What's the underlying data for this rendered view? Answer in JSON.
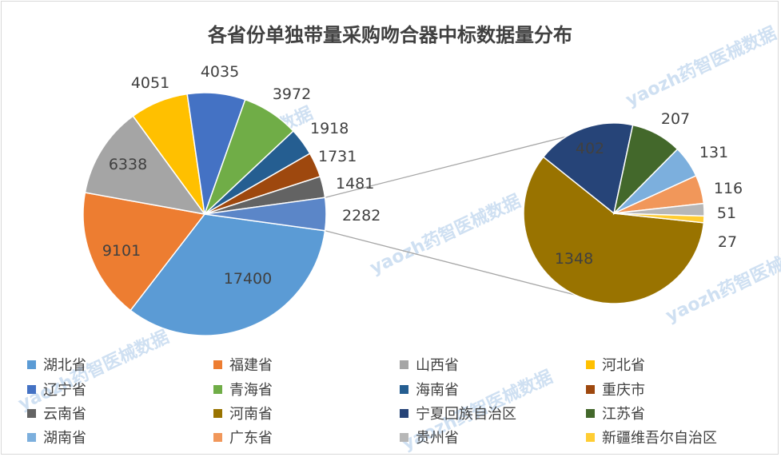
{
  "chart_data": {
    "type": "pie",
    "subtype": "pie-of-pie",
    "title": "各省份单独带量采购吻合器中标数据量分布",
    "categories": [
      "湖北省",
      "福建省",
      "山西省",
      "河北省",
      "辽宁省",
      "青海省",
      "海南省",
      "重庆市",
      "云南省",
      "河南省",
      "宁夏回族自治区",
      "江苏省",
      "湖南省",
      "广东省",
      "贵州省",
      "新疆维吾尔自治区"
    ],
    "values": [
      17400,
      9101,
      6338,
      4051,
      4035,
      3972,
      1918,
      1731,
      1481,
      1348,
      402,
      207,
      131,
      116,
      51,
      27
    ],
    "main_pie": {
      "categories": [
        "湖北省",
        "福建省",
        "山西省",
        "河北省",
        "辽宁省",
        "青海省",
        "海南省",
        "重庆市",
        "云南省"
      ],
      "values": [
        17400,
        9101,
        6338,
        4051,
        4035,
        3972,
        1918,
        1731,
        1481
      ],
      "other_value": 2282
    },
    "secondary_pie": {
      "categories": [
        "河南省",
        "宁夏回族自治区",
        "江苏省",
        "湖南省",
        "广东省",
        "贵州省",
        "新疆维吾尔自治区"
      ],
      "values": [
        1348,
        402,
        207,
        131,
        116,
        51,
        27
      ]
    },
    "colors": [
      "#5b9bd5",
      "#ed7d31",
      "#a5a5a5",
      "#ffc000",
      "#4472c4",
      "#70ad47",
      "#255e91",
      "#9e480e",
      "#636363",
      "#997300",
      "#264478",
      "#43682b",
      "#7cafdd",
      "#f1975a",
      "#b7b7b7",
      "#ffcd33"
    ],
    "legend_position": "bottom"
  },
  "watermark": "yaozh药智医械数据"
}
